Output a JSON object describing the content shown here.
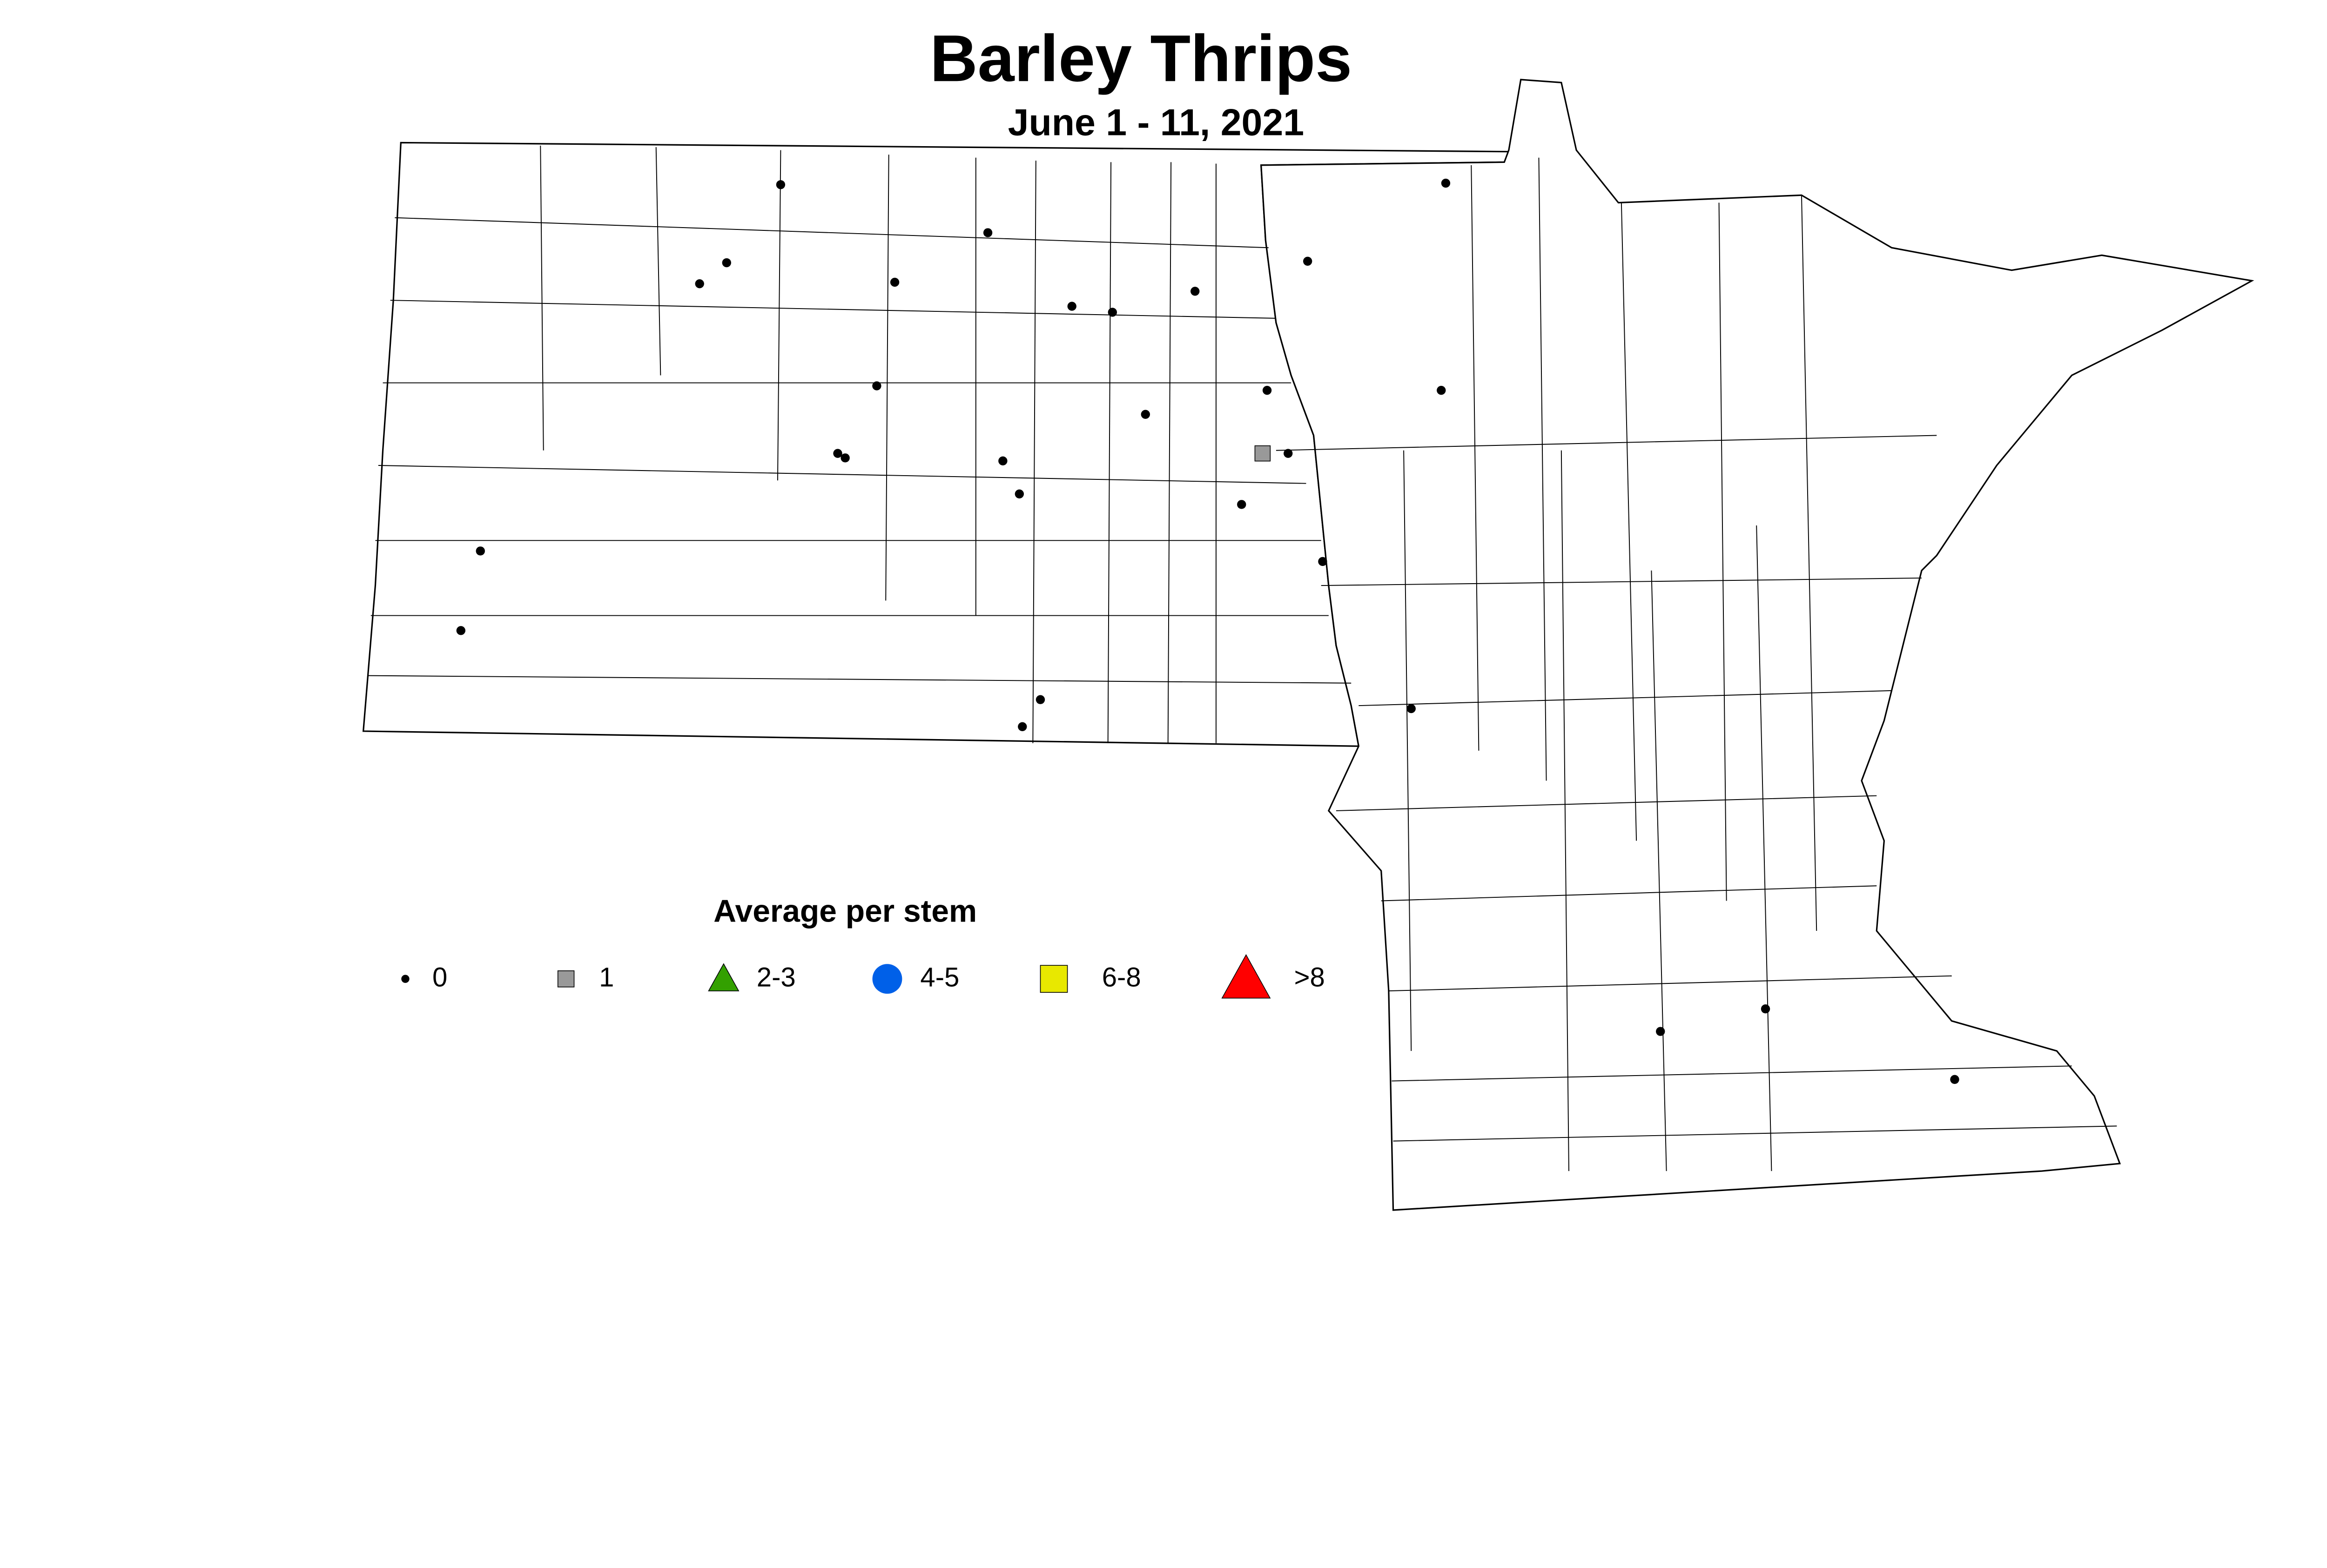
{
  "title": "Barley Thrips",
  "subtitle": "June 1 - 11, 2021",
  "legend": {
    "title": "Average per stem",
    "items": [
      {
        "label": "0",
        "shape": "dot",
        "color": "#000000"
      },
      {
        "label": "1",
        "shape": "square",
        "color": "#999999"
      },
      {
        "label": "2-3",
        "shape": "triangle",
        "color": "#33a000"
      },
      {
        "label": "4-5",
        "shape": "circle",
        "color": "#0060e8"
      },
      {
        "label": "6-8",
        "shape": "square",
        "color": "#e8e800"
      },
      {
        "label": ">8",
        "shape": "triangle",
        "color": "#ff0000"
      }
    ]
  },
  "regions": [
    "North Dakota",
    "Minnesota"
  ],
  "observations": [
    "0",
    "0",
    "0",
    "0",
    "0",
    "0",
    "0",
    "0",
    "0",
    "0",
    "0",
    "0",
    "0",
    "0",
    "0",
    "0",
    "0",
    "0",
    "0",
    "0",
    "0",
    "0",
    "0",
    "0",
    "0",
    "0",
    "0",
    "0",
    "0",
    "1"
  ]
}
